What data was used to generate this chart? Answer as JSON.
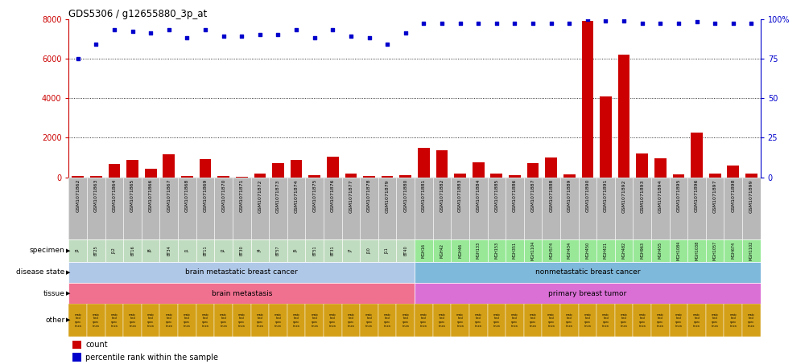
{
  "title": "GDS5306 / g12655880_3p_at",
  "gsm_labels": [
    "GSM1071862",
    "GSM1071863",
    "GSM1071864",
    "GSM1071865",
    "GSM1071866",
    "GSM1071867",
    "GSM1071868",
    "GSM1071869",
    "GSM1071870",
    "GSM1071871",
    "GSM1071872",
    "GSM1071873",
    "GSM1071874",
    "GSM1071875",
    "GSM1071876",
    "GSM1071877",
    "GSM1071878",
    "GSM1071879",
    "GSM1071880",
    "GSM1071881",
    "GSM1071882",
    "GSM1071883",
    "GSM1071884",
    "GSM1071885",
    "GSM1071886",
    "GSM1071887",
    "GSM1071888",
    "GSM1071889",
    "GSM1071890",
    "GSM1071891",
    "GSM1071892",
    "GSM1071893",
    "GSM1071894",
    "GSM1071895",
    "GSM1071896",
    "GSM1071897",
    "GSM1071898",
    "GSM1071899"
  ],
  "specimen_labels": [
    "J3",
    "BT25",
    "J12",
    "BT16",
    "J8",
    "BT34",
    "J1",
    "BT11",
    "J2",
    "BT30",
    "J4",
    "BT57",
    "J5",
    "BT51",
    "BT31",
    "J7",
    "J10",
    "J11",
    "BT40",
    "MGH16",
    "MGH42",
    "MGH46",
    "MGH133",
    "MGH153",
    "MGH351",
    "MGH1104",
    "MGH574",
    "MGH434",
    "MGH450",
    "MGH421",
    "MGH482",
    "MGH963",
    "MGH455",
    "MGH1084",
    "MGH1038",
    "MGH1057",
    "MGH674",
    "MGH1102"
  ],
  "counts": [
    50,
    50,
    680,
    870,
    430,
    1180,
    80,
    900,
    80,
    30,
    200,
    700,
    870,
    100,
    1040,
    200,
    60,
    80,
    110,
    1500,
    1350,
    200,
    750,
    200,
    100,
    700,
    1000,
    160,
    7900,
    4100,
    6200,
    1200,
    950,
    150,
    2250,
    200,
    600,
    170
  ],
  "percentiles": [
    75,
    84,
    93,
    92,
    91,
    93,
    88,
    93,
    89,
    89,
    90,
    90,
    93,
    88,
    93,
    89,
    88,
    84,
    91,
    97,
    97,
    97,
    97,
    97,
    97,
    97,
    97,
    97,
    100,
    99,
    99,
    97,
    97,
    97,
    98,
    97,
    97,
    97
  ],
  "n_samples": 38,
  "n_brain": 19,
  "bar_color": "#cc0000",
  "dot_color": "#0000cc",
  "ylim_count": [
    0,
    8000
  ],
  "ylim_pct": [
    0,
    100
  ],
  "yticks_count": [
    0,
    2000,
    4000,
    6000,
    8000
  ],
  "yticks_pct": [
    0,
    25,
    50,
    75,
    100
  ],
  "dotted_lines_count": [
    2000,
    4000,
    6000
  ],
  "disease_state_brain_color": "#b0c8e8",
  "disease_state_nonmeta_color": "#7eb8da",
  "tissue_brain_color": "#f07090",
  "tissue_primary_color": "#da70d6",
  "other_color": "#d4a017",
  "gsm_bg_color": "#b8b8b8",
  "specimen_left_bg": "#c0dcc0",
  "specimen_right_bg": "#98e898"
}
